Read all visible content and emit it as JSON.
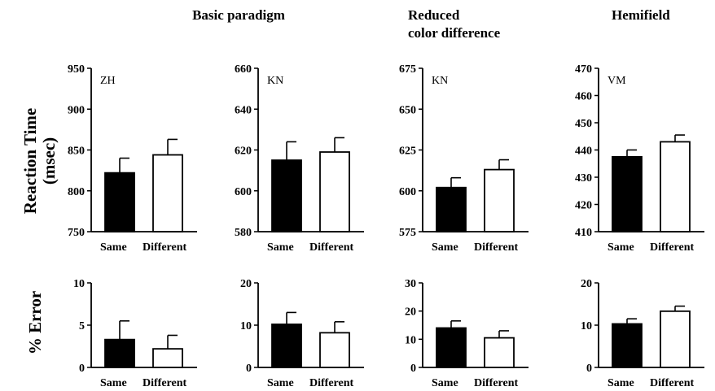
{
  "headers": {
    "basic": "Basic paradigm",
    "reduced_line1": "Reduced",
    "reduced_line2": "color difference",
    "hemifield": "Hemifield"
  },
  "row_labels": {
    "rt_line1": "Reaction Time",
    "rt_line2": "(msec)",
    "err": "% Error"
  },
  "colors": {
    "same_fill": "#000000",
    "different_fill": "#ffffff",
    "stroke": "#000000"
  },
  "chart_data": [
    {
      "id": "rt-zh",
      "type": "bar",
      "panel_label": "ZH",
      "categories": [
        "Same",
        "Different"
      ],
      "values": [
        822,
        844
      ],
      "errors": [
        18,
        19
      ],
      "ylim": [
        750,
        950
      ],
      "yticks": [
        750,
        800,
        850,
        900,
        950
      ],
      "ylabel": "Reaction Time (msec)"
    },
    {
      "id": "rt-kn1",
      "type": "bar",
      "panel_label": "KN",
      "categories": [
        "Same",
        "Different"
      ],
      "values": [
        615,
        619
      ],
      "errors": [
        9,
        7
      ],
      "ylim": [
        580,
        660
      ],
      "yticks": [
        580,
        600,
        620,
        640,
        660
      ]
    },
    {
      "id": "rt-kn2",
      "type": "bar",
      "panel_label": "KN",
      "categories": [
        "Same",
        "Different"
      ],
      "values": [
        602,
        613
      ],
      "errors": [
        6,
        6
      ],
      "ylim": [
        575,
        675
      ],
      "yticks": [
        575,
        600,
        625,
        650,
        675
      ]
    },
    {
      "id": "rt-vm",
      "type": "bar",
      "panel_label": "VM",
      "categories": [
        "Same",
        "Different"
      ],
      "values": [
        437.5,
        443
      ],
      "errors": [
        2.5,
        2.5
      ],
      "ylim": [
        410,
        470
      ],
      "yticks": [
        410,
        420,
        430,
        440,
        450,
        460,
        470
      ]
    },
    {
      "id": "err-zh",
      "type": "bar",
      "panel_label": "",
      "categories": [
        "Same",
        "Different"
      ],
      "values": [
        3.3,
        2.2
      ],
      "errors": [
        2.2,
        1.6
      ],
      "ylim": [
        0,
        10
      ],
      "yticks": [
        0,
        5,
        10
      ],
      "ylabel": "% Error"
    },
    {
      "id": "err-kn1",
      "type": "bar",
      "panel_label": "",
      "categories": [
        "Same",
        "Different"
      ],
      "values": [
        10.2,
        8.2
      ],
      "errors": [
        2.8,
        2.6
      ],
      "ylim": [
        0,
        20
      ],
      "yticks": [
        0,
        10,
        20
      ]
    },
    {
      "id": "err-kn2",
      "type": "bar",
      "panel_label": "",
      "categories": [
        "Same",
        "Different"
      ],
      "values": [
        14,
        10.5
      ],
      "errors": [
        2.5,
        2.5
      ],
      "ylim": [
        0,
        30
      ],
      "yticks": [
        0,
        10,
        20,
        30
      ]
    },
    {
      "id": "err-vm",
      "type": "bar",
      "panel_label": "",
      "categories": [
        "Same",
        "Different"
      ],
      "values": [
        10.3,
        13.3
      ],
      "errors": [
        1.2,
        1.2
      ],
      "ylim": [
        0,
        20
      ],
      "yticks": [
        0,
        10,
        20
      ]
    }
  ]
}
